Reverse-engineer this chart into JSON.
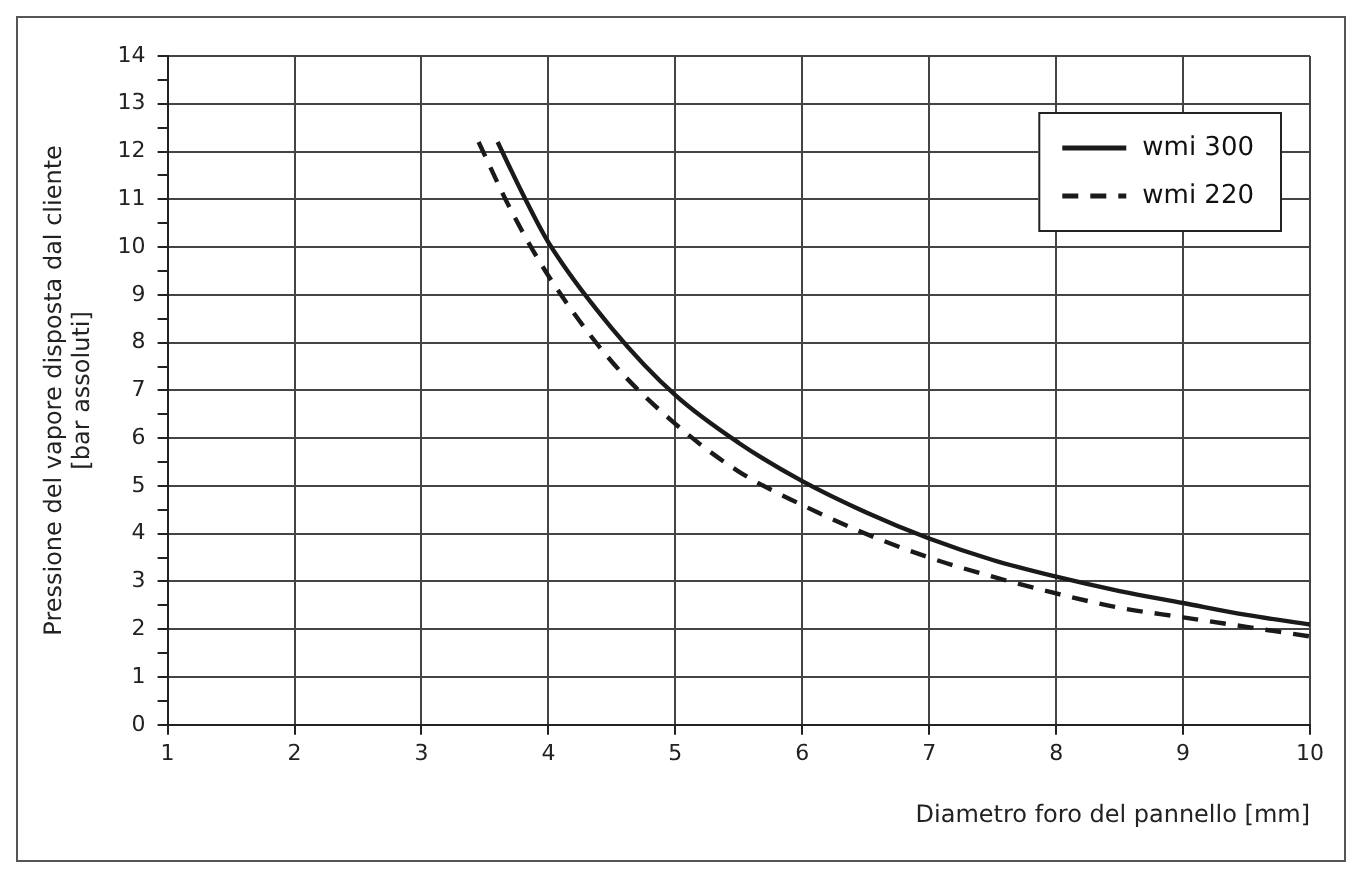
{
  "chart_data": {
    "type": "line",
    "xlabel": "Diametro foro del pannello [mm]",
    "ylabel": "Pressione del vapore disposta dal cliente\n[bar assoluti]",
    "xlim": [
      1,
      10
    ],
    "xticks": [
      1,
      2,
      3,
      4,
      5,
      6,
      7,
      8,
      9,
      10
    ],
    "ylim": [
      0,
      14
    ],
    "yticks": [
      0,
      {
        "value": 0.5,
        "label": null
      },
      1,
      {
        "value": 1.5,
        "label": null
      },
      2,
      {
        "value": 2.5,
        "label": null
      },
      3,
      {
        "value": 3.5,
        "label": null
      },
      4,
      {
        "value": 4.5,
        "label": null
      },
      5,
      {
        "value": 5.5,
        "label": null
      },
      6,
      {
        "value": 6.5,
        "label": null
      },
      7,
      {
        "value": 7.5,
        "label": null
      },
      8,
      {
        "value": 8.5,
        "label": null
      },
      9,
      {
        "value": 9.5,
        "label": null
      },
      10,
      {
        "value": 10.5,
        "label": null
      },
      11,
      {
        "value": 11.5,
        "label": null
      },
      12,
      {
        "value": 12.5,
        "label": null
      },
      13,
      {
        "value": 13.5,
        "label": null
      },
      14
    ],
    "grid": true,
    "legend": "top right",
    "marker": "none",
    "series": [
      {
        "name": "wmi 300",
        "color": "#1a1a1a",
        "line_style": "solid",
        "x": [
          3.6,
          3.8,
          4,
          4.5,
          5,
          5.5,
          6,
          6.5,
          7,
          7.5,
          8,
          8.5,
          9,
          9.5,
          10
        ],
        "values": [
          12.2,
          11.1,
          10.1,
          8.3,
          6.9,
          5.9,
          5.1,
          4.45,
          3.9,
          3.45,
          3.1,
          2.8,
          2.55,
          2.3,
          2.1
        ]
      },
      {
        "name": "wmi 220",
        "color": "#1a1a1a",
        "line_style": "dashed",
        "x": [
          3.45,
          3.7,
          4,
          4.5,
          5,
          5.5,
          6,
          6.5,
          7,
          7.5,
          8,
          8.5,
          9,
          9.5,
          10
        ],
        "values": [
          12.2,
          10.8,
          9.4,
          7.6,
          6.3,
          5.3,
          4.6,
          4.0,
          3.5,
          3.1,
          2.75,
          2.45,
          2.25,
          2.05,
          1.85
        ]
      }
    ]
  }
}
